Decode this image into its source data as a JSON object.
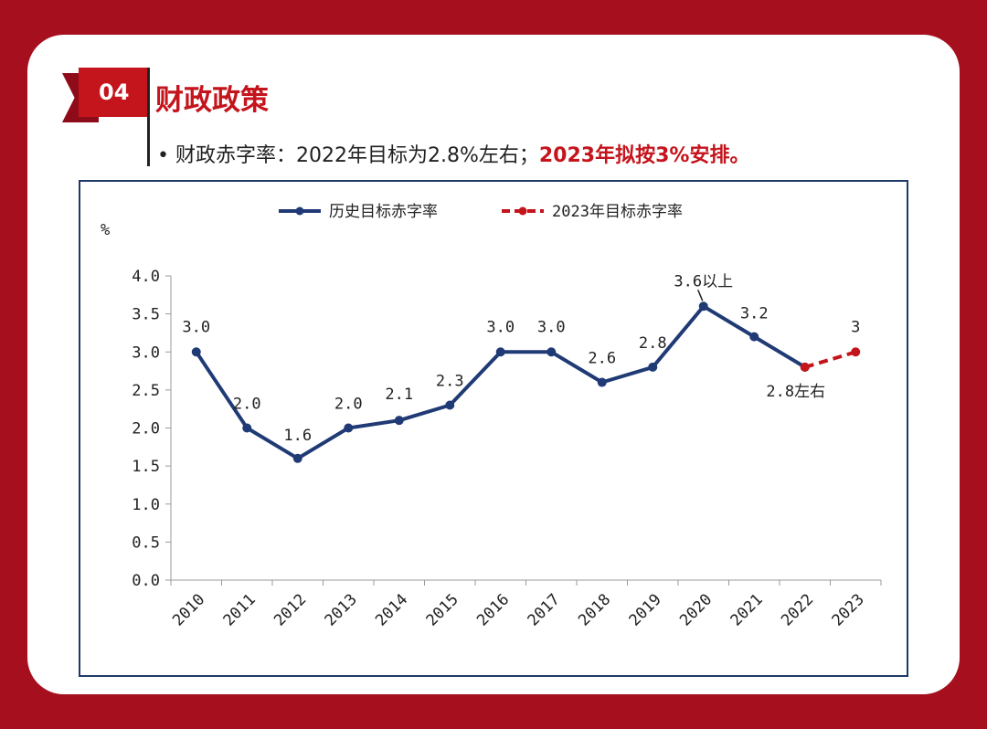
{
  "header": {
    "badge": "04",
    "title": "财政政策",
    "bullet": "•",
    "sub_normal": "财政赤字率：2022年目标为2.8%左右；",
    "sub_highlight": "2023年拟按3%安排。"
  },
  "colors": {
    "background": "#a50f1e",
    "accent_red": "#c4141c",
    "historical_line": "#1f3a75",
    "target_line": "#c4141c",
    "frame": "#1f3a66"
  },
  "chart_data": {
    "type": "line",
    "ylabel": "%",
    "ylim": [
      0,
      4
    ],
    "yticks": [
      0.0,
      0.5,
      1.0,
      1.5,
      2.0,
      2.5,
      3.0,
      3.5,
      4.0
    ],
    "ytick_labels": [
      "0.0",
      "0.5",
      "1.0",
      "1.5",
      "2.0",
      "2.5",
      "3.0",
      "3.5",
      "4.0"
    ],
    "categories": [
      "2010",
      "2011",
      "2012",
      "2013",
      "2014",
      "2015",
      "2016",
      "2017",
      "2018",
      "2019",
      "2020",
      "2021",
      "2022",
      "2023"
    ],
    "legend_position": "top-center",
    "grid": false,
    "series": [
      {
        "name": "历史目标赤字率",
        "style": "solid",
        "color": "#1f3a75",
        "x": [
          "2010",
          "2011",
          "2012",
          "2013",
          "2014",
          "2015",
          "2016",
          "2017",
          "2018",
          "2019",
          "2020",
          "2021",
          "2022"
        ],
        "values": [
          3.0,
          2.0,
          1.6,
          2.0,
          2.1,
          2.3,
          3.0,
          3.0,
          2.6,
          2.8,
          3.6,
          3.2,
          2.8
        ],
        "labels": [
          "3.0",
          "2.0",
          "1.6",
          "2.0",
          "2.1",
          "2.3",
          "3.0",
          "3.0",
          "2.6",
          "2.8",
          "3.6以上",
          "3.2",
          "2.8左右"
        ]
      },
      {
        "name": "2023年目标赤字率",
        "style": "dashed",
        "color": "#c4141c",
        "x": [
          "2022",
          "2023"
        ],
        "values": [
          2.8,
          3.0
        ],
        "labels": [
          "",
          "3"
        ]
      }
    ]
  }
}
